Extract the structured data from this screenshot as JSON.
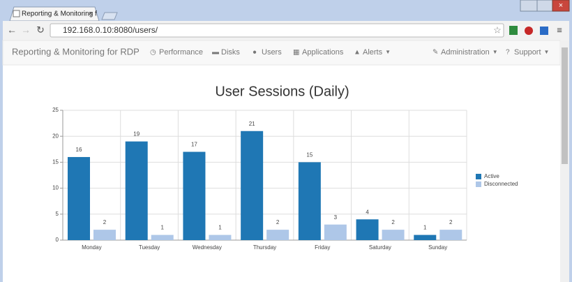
{
  "browser": {
    "tab_title": "Reporting & Monitoring f",
    "url": "192.168.0.10:8080/users/"
  },
  "navbar": {
    "brand": "Reporting & Monitoring for RDP",
    "items": [
      "Performance",
      "Disks",
      "Users",
      "Applications",
      "Alerts"
    ],
    "right_items": [
      "Administration",
      "Support"
    ]
  },
  "chart_data": {
    "type": "bar",
    "title": "User Sessions (Daily)",
    "categories": [
      "Monday",
      "Tuesday",
      "Wednesday",
      "Thursday",
      "Friday",
      "Saturday",
      "Sunday"
    ],
    "series": [
      {
        "name": "Active",
        "color": "#1f77b4",
        "values": [
          16,
          19,
          17,
          21,
          15,
          4,
          1
        ]
      },
      {
        "name": "Disconnected",
        "color": "#aec7e8",
        "values": [
          2,
          1,
          1,
          2,
          3,
          2,
          2
        ]
      }
    ],
    "ylim": [
      0,
      25
    ],
    "yticks": [
      0,
      5,
      10,
      15,
      20,
      25
    ],
    "grid": true,
    "legend": "right"
  }
}
